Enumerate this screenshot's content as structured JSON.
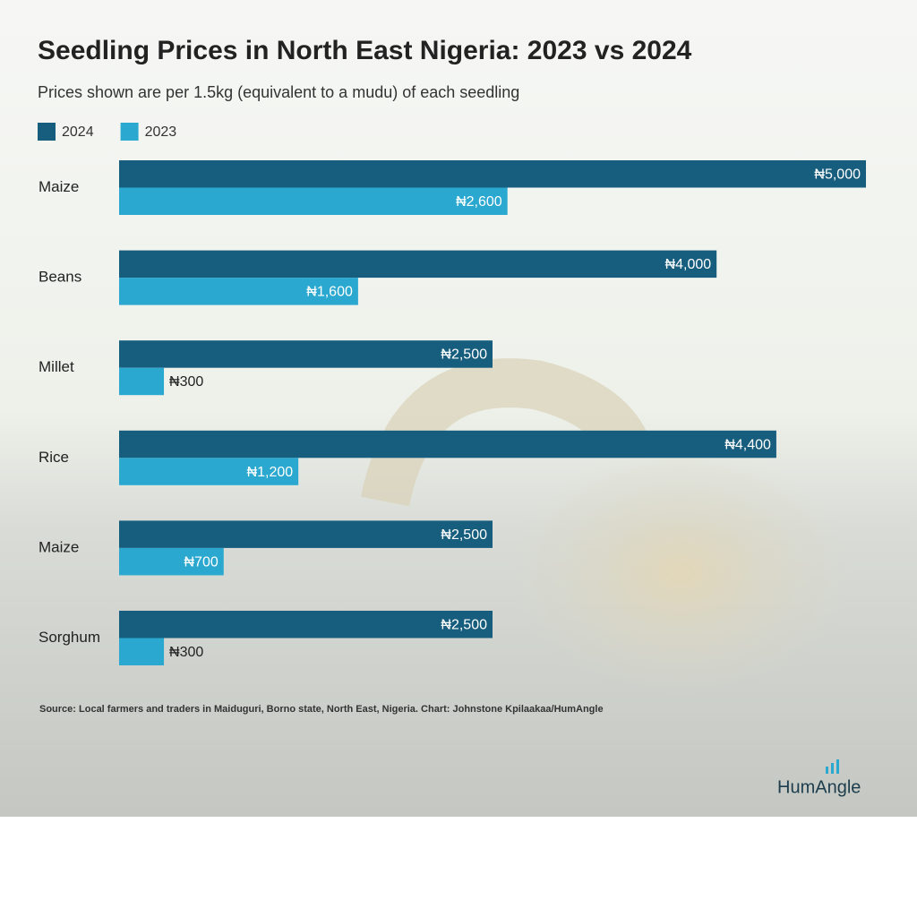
{
  "chart_data": {
    "type": "bar",
    "orientation": "horizontal",
    "title": "Seedling Prices in North East Nigeria: 2023 vs 2024",
    "subtitle": "Prices shown are per 1.5kg (equivalent to a mudu) of each seedling",
    "categories": [
      "Maize",
      "Beans",
      "Millet",
      "Rice",
      "Maize",
      "Sorghum"
    ],
    "series": [
      {
        "name": "2024",
        "color": "#175e7e",
        "values": [
          5000,
          4000,
          2500,
          4400,
          2500,
          2500
        ],
        "value_labels": [
          "₦5,000",
          "₦4,000",
          "₦2,500",
          "₦4,400",
          "₦2,500",
          "₦2,500"
        ]
      },
      {
        "name": "2023",
        "color": "#2aa8cf",
        "values": [
          2600,
          1600,
          300,
          1200,
          700,
          300
        ],
        "value_labels": [
          "₦2,600",
          "₦1,600",
          "₦300",
          "₦1,200",
          "₦700",
          "₦300"
        ]
      }
    ],
    "source": "Source: Local farmers and traders in Maiduguri, Borno state, North East, Nigeria.  Chart: Johnstone Kpilaakaa/HumAngle",
    "logo": "HumAngle"
  }
}
